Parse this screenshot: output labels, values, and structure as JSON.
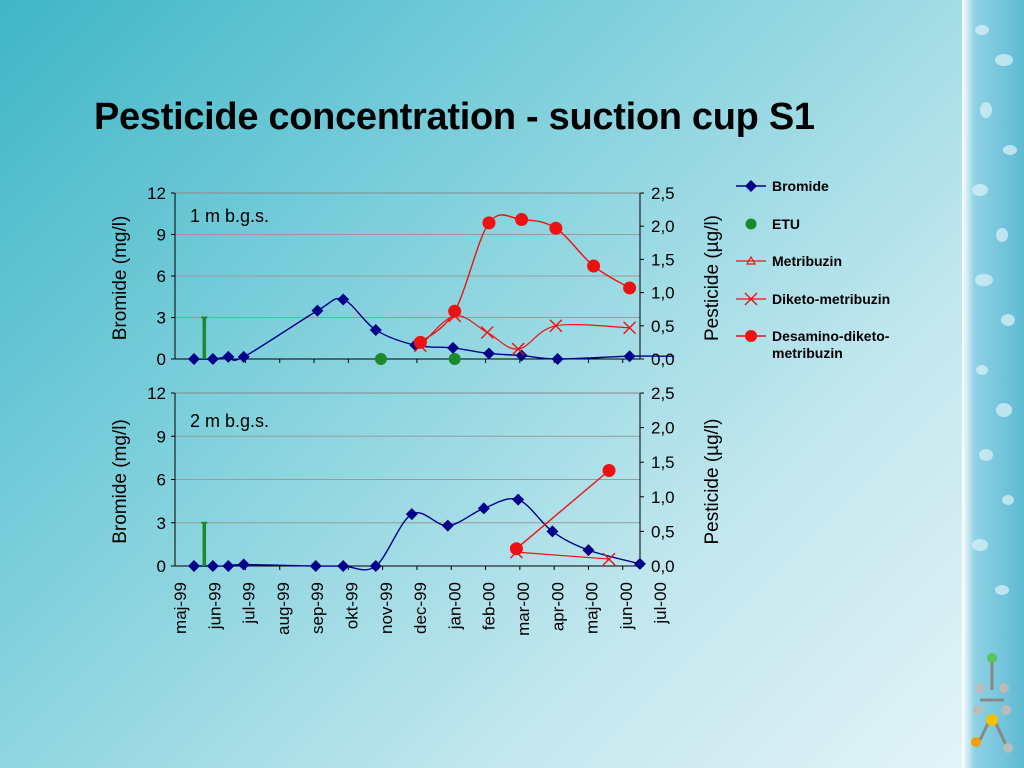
{
  "slide": {
    "title": "Pesticide concentration - suction cup S1"
  },
  "colors": {
    "bromide": "#00008b",
    "etu": "#1a8a2a",
    "pesticide": "#ee1111",
    "grid": "#9a9a9a"
  },
  "legend": [
    {
      "key": "bromide",
      "label": "Bromide",
      "marker": "diamond-icon"
    },
    {
      "key": "etu",
      "label": "ETU",
      "marker": "circle-icon"
    },
    {
      "key": "metribuzin",
      "label": "Metribuzin",
      "marker": "triangle-icon"
    },
    {
      "key": "diketo",
      "label": "Diketo-metribuzin",
      "marker": "cross-icon"
    },
    {
      "key": "desamino",
      "label": "Desamino-diketo-metribuzin",
      "marker": "dot-icon"
    }
  ],
  "chart_data": [
    {
      "type": "line",
      "annotation": "1 m b.g.s.",
      "ylabel_left": "Bromide (mg/l)",
      "ylabel_right": "Pesticide (µg/l)",
      "ylim_left": [
        0,
        12
      ],
      "yticks_left": [
        "0",
        "3",
        "6",
        "9",
        "12"
      ],
      "ylim_right": [
        0,
        2.5
      ],
      "yticks_right": [
        "0,0",
        "0,5",
        "1,0",
        "1,5",
        "2,0",
        "2,5"
      ],
      "grid": true,
      "series": [
        {
          "name": "Bromide",
          "axis": "left",
          "marker": "diamond",
          "points": [
            [
              0.0,
              0
            ],
            [
              0.55,
              0
            ],
            [
              1.0,
              0.15
            ],
            [
              1.45,
              0.15
            ],
            [
              3.6,
              3.5
            ],
            [
              4.35,
              4.3
            ],
            [
              5.3,
              2.1
            ],
            [
              6.45,
              1.0
            ],
            [
              7.55,
              0.8
            ],
            [
              8.6,
              0.4
            ],
            [
              9.55,
              0.25
            ],
            [
              10.6,
              0.0
            ],
            [
              12.7,
              0.2
            ],
            [
              14.0,
              0.2
            ]
          ]
        },
        {
          "name": "ETU",
          "axis": "right",
          "marker": "dot",
          "points": [
            [
              5.45,
              0.0
            ],
            [
              7.6,
              0.0
            ]
          ]
        },
        {
          "name": "ETU",
          "axis": "left",
          "marker": "stem",
          "points": [
            [
              0.3,
              3.0
            ]
          ]
        },
        {
          "name": "Diketo-metribuzin",
          "axis": "right",
          "marker": "cross",
          "points": [
            [
              6.6,
              0.2
            ],
            [
              7.6,
              0.65
            ],
            [
              8.55,
              0.4
            ],
            [
              9.45,
              0.15
            ],
            [
              10.55,
              0.5
            ],
            [
              12.7,
              0.47
            ]
          ]
        },
        {
          "name": "Desamino-diketo-metribuzin",
          "axis": "right",
          "marker": "dot",
          "points": [
            [
              6.6,
              0.25
            ],
            [
              7.6,
              0.72
            ],
            [
              8.6,
              2.05
            ],
            [
              9.55,
              2.1
            ],
            [
              10.55,
              1.97
            ],
            [
              11.65,
              1.4
            ],
            [
              12.7,
              1.07
            ]
          ]
        }
      ]
    },
    {
      "type": "line",
      "annotation": "2 m b.g.s.",
      "ylabel_left": "Bromide (mg/l)",
      "ylabel_right": "Pesticide (µg/l)",
      "ylim_left": [
        0,
        12
      ],
      "yticks_left": [
        "0",
        "3",
        "6",
        "9",
        "12"
      ],
      "ylim_right": [
        0,
        2.5
      ],
      "yticks_right": [
        "0,0",
        "0,5",
        "1,0",
        "1,5",
        "2,0",
        "2,5"
      ],
      "grid": true,
      "categories": [
        "maj-99",
        "jun-99",
        "jul-99",
        "aug-99",
        "sep-99",
        "okt-99",
        "nov-99",
        "dec-99",
        "jan-00",
        "feb-00",
        "mar-00",
        "apr-00",
        "maj-00",
        "jun-00",
        "jul-00"
      ],
      "series": [
        {
          "name": "Bromide",
          "axis": "left",
          "marker": "diamond",
          "points": [
            [
              0.0,
              0
            ],
            [
              0.55,
              0
            ],
            [
              1.0,
              0
            ],
            [
              1.45,
              0.1
            ],
            [
              3.55,
              0
            ],
            [
              4.35,
              0
            ],
            [
              5.3,
              0
            ],
            [
              6.35,
              3.6
            ],
            [
              7.4,
              2.8
            ],
            [
              8.45,
              4.0
            ],
            [
              9.45,
              4.6
            ],
            [
              10.45,
              2.4
            ],
            [
              11.5,
              1.1
            ],
            [
              13.0,
              0.15
            ]
          ]
        },
        {
          "name": "ETU",
          "axis": "left",
          "marker": "stem",
          "points": [
            [
              0.3,
              3.0
            ]
          ]
        },
        {
          "name": "Diketo-metribuzin",
          "axis": "right",
          "marker": "cross",
          "points": [
            [
              9.4,
              0.2
            ],
            [
              12.1,
              0.1
            ]
          ]
        },
        {
          "name": "Desamino-diketo-metribuzin",
          "axis": "right",
          "marker": "dot",
          "points": [
            [
              9.4,
              0.25
            ],
            [
              12.1,
              1.38
            ]
          ]
        }
      ]
    }
  ]
}
